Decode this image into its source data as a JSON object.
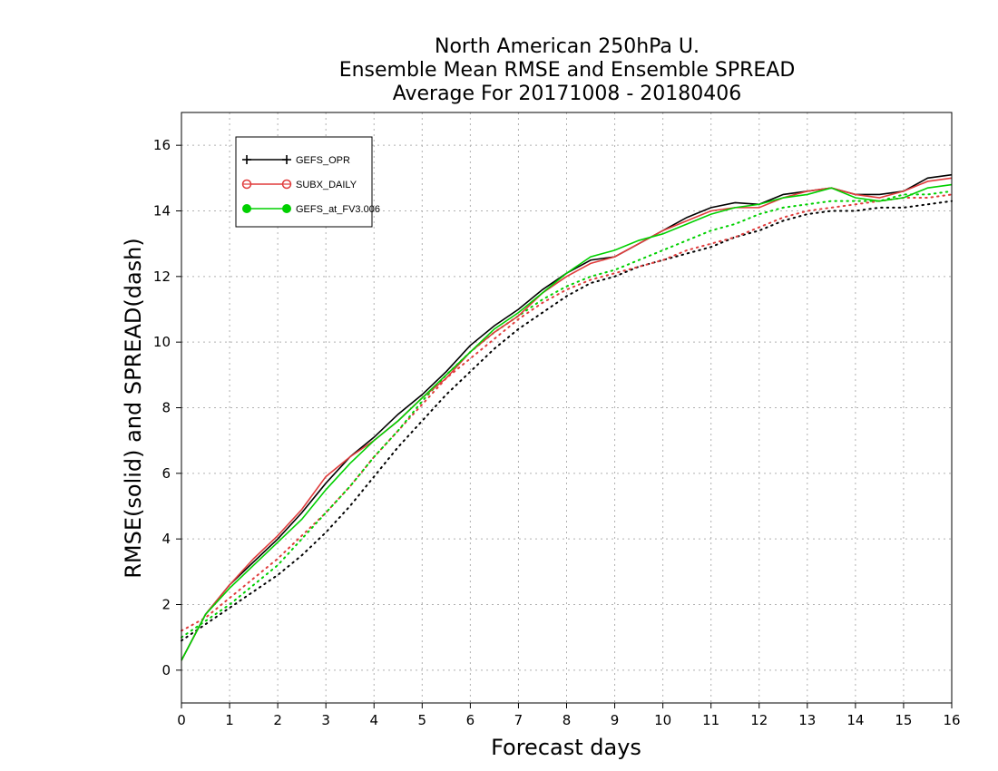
{
  "chart_data": {
    "type": "line",
    "title": [
      "North American 250hPa U.",
      "Ensemble Mean RMSE and Ensemble SPREAD",
      "Average For 20171008 - 20180406"
    ],
    "xlabel": "Forecast days",
    "ylabel": "RMSE(solid) and SPREAD(dash)",
    "xlim": [
      0,
      16
    ],
    "ylim": [
      -1,
      17
    ],
    "xticks": [
      "0",
      "1",
      "2",
      "3",
      "4",
      "5",
      "6",
      "7",
      "8",
      "9",
      "10",
      "11",
      "12",
      "13",
      "14",
      "15",
      "16"
    ],
    "yticks": [
      "0",
      "2",
      "4",
      "6",
      "8",
      "10",
      "12",
      "14",
      "16"
    ],
    "grid": true,
    "legend_position": "top-left",
    "x": [
      0,
      0.5,
      1,
      1.5,
      2,
      2.5,
      3,
      3.5,
      4,
      4.5,
      5,
      5.5,
      6,
      6.5,
      7,
      7.5,
      8,
      8.5,
      9,
      9.5,
      10,
      10.5,
      11,
      11.5,
      12,
      12.5,
      13,
      13.5,
      14,
      14.5,
      15,
      15.5,
      16
    ],
    "series": [
      {
        "name": "GEFS_OPR",
        "color": "#000000",
        "marker": "plus",
        "rmse": [
          0.3,
          1.7,
          2.6,
          3.3,
          4.0,
          4.8,
          5.7,
          6.5,
          7.1,
          7.8,
          8.4,
          9.1,
          9.9,
          10.5,
          11.0,
          11.6,
          12.1,
          12.5,
          12.6,
          13.0,
          13.4,
          13.8,
          14.1,
          14.25,
          14.2,
          14.5,
          14.6,
          14.7,
          14.5,
          14.5,
          14.6,
          15.0,
          15.1
        ],
        "spread": [
          0.9,
          1.4,
          1.9,
          2.4,
          2.9,
          3.5,
          4.2,
          5.0,
          5.9,
          6.8,
          7.6,
          8.4,
          9.1,
          9.8,
          10.4,
          10.9,
          11.4,
          11.8,
          12.0,
          12.3,
          12.5,
          12.7,
          12.9,
          13.2,
          13.4,
          13.7,
          13.9,
          14.0,
          14.0,
          14.1,
          14.1,
          14.2,
          14.3
        ]
      },
      {
        "name": "SUBX_DAILY",
        "color": "#e03c3c",
        "marker": "open-circle",
        "rmse": [
          0.3,
          1.7,
          2.6,
          3.4,
          4.1,
          4.9,
          5.9,
          6.5,
          7.0,
          7.6,
          8.3,
          8.9,
          9.7,
          10.3,
          10.8,
          11.5,
          12.0,
          12.4,
          12.6,
          13.0,
          13.4,
          13.7,
          14.0,
          14.1,
          14.1,
          14.4,
          14.6,
          14.7,
          14.5,
          14.4,
          14.6,
          14.9,
          15.0
        ],
        "spread": [
          1.2,
          1.6,
          2.2,
          2.8,
          3.4,
          4.1,
          4.8,
          5.6,
          6.5,
          7.3,
          8.1,
          8.9,
          9.5,
          10.1,
          10.7,
          11.2,
          11.6,
          11.9,
          12.1,
          12.3,
          12.5,
          12.8,
          13.0,
          13.2,
          13.5,
          13.8,
          14.0,
          14.1,
          14.2,
          14.3,
          14.4,
          14.4,
          14.5
        ]
      },
      {
        "name": "GEFS_at_FV3.006",
        "color": "#00d000",
        "marker": "filled-circle",
        "rmse": [
          0.3,
          1.7,
          2.5,
          3.2,
          3.9,
          4.6,
          5.5,
          6.3,
          7.0,
          7.6,
          8.3,
          9.0,
          9.7,
          10.4,
          10.9,
          11.5,
          12.1,
          12.6,
          12.8,
          13.1,
          13.3,
          13.6,
          13.9,
          14.1,
          14.2,
          14.4,
          14.5,
          14.7,
          14.4,
          14.3,
          14.4,
          14.7,
          14.8
        ],
        "spread": [
          1.0,
          1.5,
          2.0,
          2.6,
          3.2,
          4.0,
          4.8,
          5.6,
          6.5,
          7.3,
          8.2,
          9.0,
          9.7,
          10.3,
          10.8,
          11.3,
          11.7,
          12.0,
          12.2,
          12.5,
          12.8,
          13.1,
          13.4,
          13.6,
          13.9,
          14.1,
          14.2,
          14.3,
          14.3,
          14.3,
          14.5,
          14.5,
          14.6
        ]
      }
    ]
  }
}
